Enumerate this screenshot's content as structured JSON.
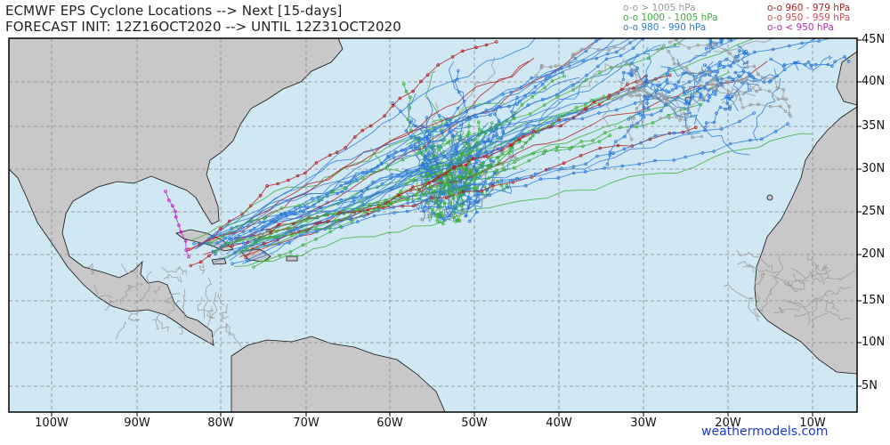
{
  "header": {
    "line1": "ECMWF EPS Cyclone Locations --> Next [15-days]",
    "line2": "FORECAST INIT: 12Z16OCT2020 --> UNTIL 12Z31OCT2020"
  },
  "legend": [
    {
      "symbol": "o-o",
      "label": "> 1005 hPa",
      "color": "#9a9a9a"
    },
    {
      "symbol": "o-o",
      "label": "1000 - 1005 hPa",
      "color": "#3cae3c"
    },
    {
      "symbol": "o-o",
      "label": "980 - 990 hPa",
      "color": "#2f7bd6"
    },
    {
      "symbol": "o-o",
      "label": "960 - 979 hPa",
      "color": "#b21f1f"
    },
    {
      "symbol": "o-o",
      "label": "950 - 959 hPa",
      "color": "#d84a4a"
    },
    {
      "symbol": "o-o",
      "label": "< 950 hPa",
      "color": "#c21fc2"
    }
  ],
  "map": {
    "extent": {
      "lon_min": -105,
      "lon_max": -5,
      "lat_min": 1,
      "lat_max": 45
    },
    "ocean_color": "#cfe8f3",
    "land_color": "#c8c8c8",
    "lat_labels": [
      "45N",
      "40N",
      "35N",
      "30N",
      "25N",
      "20N",
      "15N",
      "10N",
      "5N"
    ],
    "lon_labels": [
      "100W",
      "90W",
      "80W",
      "70W",
      "60W",
      "50W",
      "40W",
      "30W",
      "20W",
      "10W"
    ]
  },
  "credit": "weathermodels.com"
}
